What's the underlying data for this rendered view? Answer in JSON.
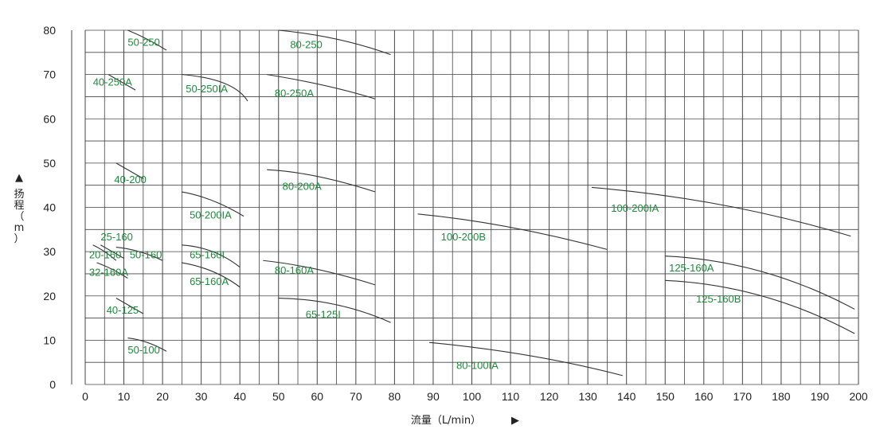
{
  "chart_data": {
    "type": "line",
    "xlabel": "流量（L/min）",
    "xlabel_arrow": "▶",
    "ylabel_arrow": "▲",
    "ylabel_chars": [
      "扬",
      "程",
      "（",
      "m",
      "）"
    ],
    "xlim": [
      0,
      200
    ],
    "ylim": [
      0,
      80
    ],
    "xticks": [
      "0",
      "10",
      "20",
      "30",
      "40",
      "50",
      "60",
      "70",
      "80",
      "90",
      "100",
      "110",
      "120",
      "130",
      "140",
      "150",
      "160",
      "170",
      "180",
      "190",
      "200"
    ],
    "yticks": [
      "0",
      "10",
      "20",
      "30",
      "40",
      "50",
      "60",
      "70",
      "80"
    ],
    "grid": true,
    "colors": {
      "label": "#1f8a3c",
      "curve": "#333333",
      "grid": "#444444"
    },
    "series": [
      {
        "name": "50-250",
        "x": [
          11,
          16,
          21
        ],
        "y": [
          80,
          78,
          75.5
        ]
      },
      {
        "name": "80-250",
        "x": [
          50,
          65,
          79
        ],
        "y": [
          80,
          78,
          74.5
        ]
      },
      {
        "name": "40-250A",
        "x": [
          6,
          9,
          13
        ],
        "y": [
          70,
          68.5,
          66.5
        ]
      },
      {
        "name": "50-250IA",
        "x": [
          25,
          36,
          42
        ],
        "y": [
          70,
          68,
          64
        ]
      },
      {
        "name": "80-250A",
        "x": [
          47,
          62,
          75
        ],
        "y": [
          70,
          67.5,
          64.5
        ]
      },
      {
        "name": "40-200",
        "x": [
          8,
          11,
          15
        ],
        "y": [
          50,
          48.5,
          46.5
        ]
      },
      {
        "name": "80-200A",
        "x": [
          47,
          60,
          75
        ],
        "y": [
          48.5,
          47,
          43.5
        ]
      },
      {
        "name": "50-200IA",
        "x": [
          25,
          33,
          41
        ],
        "y": [
          43.5,
          41.5,
          38
        ]
      },
      {
        "name": "100-200IA",
        "x": [
          131,
          165,
          198
        ],
        "y": [
          44.5,
          40.5,
          33.5
        ]
      },
      {
        "name": "100-200B",
        "x": [
          86,
          110,
          135
        ],
        "y": [
          38.5,
          35.5,
          30.5
        ]
      },
      {
        "name": "25-160",
        "x": [
          4,
          7,
          10
        ],
        "y": [
          31.5,
          30,
          28.5
        ]
      },
      {
        "name": "50-160",
        "x": [
          8,
          14,
          20
        ],
        "y": [
          31,
          30,
          28
        ]
      },
      {
        "name": "20-160",
        "x": [
          2,
          5,
          8
        ],
        "y": [
          31.5,
          30,
          28
        ]
      },
      {
        "name": "65-160I",
        "x": [
          25,
          33,
          40
        ],
        "y": [
          31.5,
          30,
          26.5
        ]
      },
      {
        "name": "32-160A",
        "x": [
          3,
          7,
          11
        ],
        "y": [
          27.5,
          26,
          24
        ]
      },
      {
        "name": "65-160A",
        "x": [
          25,
          33,
          40
        ],
        "y": [
          27.5,
          25.5,
          22
        ]
      },
      {
        "name": "80-160A",
        "x": [
          46,
          60,
          75
        ],
        "y": [
          28,
          26,
          22.5
        ]
      },
      {
        "name": "125-160A",
        "x": [
          150,
          175,
          199
        ],
        "y": [
          29,
          25.5,
          17
        ]
      },
      {
        "name": "125-160B",
        "x": [
          150,
          175,
          199
        ],
        "y": [
          23.5,
          20,
          11.5
        ]
      },
      {
        "name": "40-125",
        "x": [
          8,
          11,
          15
        ],
        "y": [
          19.5,
          18,
          16
        ]
      },
      {
        "name": "65-125I",
        "x": [
          50,
          65,
          79
        ],
        "y": [
          19.5,
          18,
          14
        ]
      },
      {
        "name": "50-100",
        "x": [
          11,
          16,
          21
        ],
        "y": [
          10.5,
          9.5,
          7.5
        ]
      },
      {
        "name": "80-100IA",
        "x": [
          89,
          115,
          139
        ],
        "y": [
          9.5,
          6.5,
          2
        ]
      }
    ],
    "labels": [
      {
        "text": "50-250",
        "x": 11,
        "y": 76.5
      },
      {
        "text": "80-250",
        "x": 53,
        "y": 76
      },
      {
        "text": "40-250A",
        "x": 2,
        "y": 67.5
      },
      {
        "text": "50-250IA",
        "x": 26,
        "y": 66
      },
      {
        "text": "80-250A",
        "x": 49,
        "y": 65
      },
      {
        "text": "40-200",
        "x": 7.5,
        "y": 45.5
      },
      {
        "text": "80-200A",
        "x": 51,
        "y": 44
      },
      {
        "text": "50-200IA",
        "x": 27,
        "y": 37.5
      },
      {
        "text": "100-200IA",
        "x": 136,
        "y": 39
      },
      {
        "text": "100-200B",
        "x": 92,
        "y": 32.5
      },
      {
        "text": "25-160",
        "x": 4,
        "y": 32.5
      },
      {
        "text": "20-160",
        "x": 1,
        "y": 28.5
      },
      {
        "text": "50-160",
        "x": 11.5,
        "y": 28.5
      },
      {
        "text": "65-160I",
        "x": 27,
        "y": 28.5
      },
      {
        "text": "32-160A",
        "x": 1,
        "y": 24.5
      },
      {
        "text": "65-160A",
        "x": 27,
        "y": 22.5
      },
      {
        "text": "80-160A",
        "x": 49,
        "y": 25
      },
      {
        "text": "125-160A",
        "x": 151,
        "y": 25.5
      },
      {
        "text": "125-160B",
        "x": 158,
        "y": 18.5
      },
      {
        "text": "40-125",
        "x": 5.5,
        "y": 16
      },
      {
        "text": "65-125I",
        "x": 57,
        "y": 15
      },
      {
        "text": "50-100",
        "x": 11,
        "y": 7
      },
      {
        "text": "80-100IA",
        "x": 96,
        "y": 3.5
      }
    ]
  }
}
